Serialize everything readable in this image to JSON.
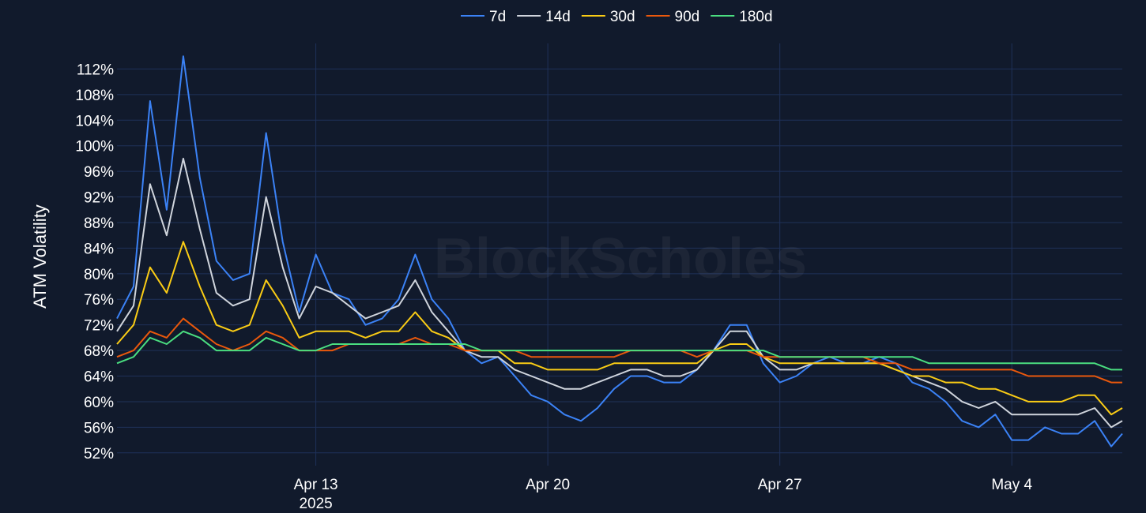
{
  "watermark": "BlockScholes",
  "chart_data": {
    "type": "line",
    "title": "",
    "xlabel": "",
    "ylabel": "ATM Volatility",
    "x_range": [
      "2025-04-07T00:00",
      "2025-05-07T08:00"
    ],
    "ylim": [
      50,
      116
    ],
    "grid": true,
    "legend_position": "top-center",
    "y_ticks": [
      "52%",
      "56%",
      "60%",
      "64%",
      "68%",
      "72%",
      "76%",
      "80%",
      "84%",
      "88%",
      "92%",
      "96%",
      "100%",
      "104%",
      "108%",
      "112%"
    ],
    "y_tick_values": [
      52,
      56,
      60,
      64,
      68,
      72,
      76,
      80,
      84,
      88,
      92,
      96,
      100,
      104,
      108,
      112
    ],
    "x_ticks": [
      {
        "date": "2025-04-13",
        "label": "Apr 13",
        "sublabel": "2025"
      },
      {
        "date": "2025-04-20",
        "label": "Apr 20",
        "sublabel": ""
      },
      {
        "date": "2025-04-27",
        "label": "Apr 27",
        "sublabel": ""
      },
      {
        "date": "2025-05-04",
        "label": "May 4",
        "sublabel": ""
      }
    ],
    "x": [
      "2025-04-07T00:00",
      "2025-04-07T12:00",
      "2025-04-08T00:00",
      "2025-04-08T12:00",
      "2025-04-09T00:00",
      "2025-04-09T12:00",
      "2025-04-10T00:00",
      "2025-04-10T12:00",
      "2025-04-11T00:00",
      "2025-04-11T12:00",
      "2025-04-12T00:00",
      "2025-04-12T12:00",
      "2025-04-13T00:00",
      "2025-04-13T12:00",
      "2025-04-14T00:00",
      "2025-04-14T12:00",
      "2025-04-15T00:00",
      "2025-04-15T12:00",
      "2025-04-16T00:00",
      "2025-04-16T12:00",
      "2025-04-17T00:00",
      "2025-04-17T12:00",
      "2025-04-18T00:00",
      "2025-04-18T12:00",
      "2025-04-19T00:00",
      "2025-04-19T12:00",
      "2025-04-20T00:00",
      "2025-04-20T12:00",
      "2025-04-21T00:00",
      "2025-04-21T12:00",
      "2025-04-22T00:00",
      "2025-04-22T12:00",
      "2025-04-23T00:00",
      "2025-04-23T12:00",
      "2025-04-24T00:00",
      "2025-04-24T12:00",
      "2025-04-25T00:00",
      "2025-04-25T12:00",
      "2025-04-26T00:00",
      "2025-04-26T12:00",
      "2025-04-27T00:00",
      "2025-04-27T12:00",
      "2025-04-28T00:00",
      "2025-04-28T12:00",
      "2025-04-29T00:00",
      "2025-04-29T12:00",
      "2025-04-30T00:00",
      "2025-04-30T12:00",
      "2025-05-01T00:00",
      "2025-05-01T12:00",
      "2025-05-02T00:00",
      "2025-05-02T12:00",
      "2025-05-03T00:00",
      "2025-05-03T12:00",
      "2025-05-04T00:00",
      "2025-05-04T12:00",
      "2025-05-05T00:00",
      "2025-05-05T12:00",
      "2025-05-06T00:00",
      "2025-05-06T12:00",
      "2025-05-07T00:00",
      "2025-05-07T08:00"
    ],
    "series": [
      {
        "name": "7d",
        "color": "#3b82f6",
        "values": [
          73,
          78,
          107,
          90,
          114,
          95,
          82,
          79,
          80,
          102,
          85,
          74,
          83,
          77,
          76,
          72,
          73,
          76,
          83,
          76,
          73,
          68,
          66,
          67,
          64,
          61,
          60,
          58,
          57,
          59,
          62,
          64,
          64,
          63,
          63,
          65,
          68,
          72,
          72,
          66,
          63,
          64,
          66,
          67,
          66,
          66,
          67,
          66,
          63,
          62,
          60,
          57,
          56,
          58,
          54,
          54,
          56,
          55,
          55,
          57,
          53,
          55
        ]
      },
      {
        "name": "14d",
        "color": "#cfd4dc",
        "values": [
          71,
          75,
          94,
          86,
          98,
          87,
          77,
          75,
          76,
          92,
          81,
          73,
          78,
          77,
          75,
          73,
          74,
          75,
          79,
          74,
          71,
          68,
          67,
          67,
          65,
          64,
          63,
          62,
          62,
          63,
          64,
          65,
          65,
          64,
          64,
          65,
          68,
          71,
          71,
          67,
          65,
          65,
          66,
          66,
          66,
          66,
          66,
          65,
          64,
          63,
          62,
          60,
          59,
          60,
          58,
          58,
          58,
          58,
          58,
          59,
          56,
          57
        ]
      },
      {
        "name": "30d",
        "color": "#facc15",
        "values": [
          69,
          72,
          81,
          77,
          85,
          78,
          72,
          71,
          72,
          79,
          75,
          70,
          71,
          71,
          71,
          70,
          71,
          71,
          74,
          71,
          70,
          68,
          68,
          68,
          66,
          66,
          65,
          65,
          65,
          65,
          66,
          66,
          66,
          66,
          66,
          66,
          68,
          69,
          69,
          67,
          66,
          66,
          66,
          66,
          66,
          66,
          66,
          65,
          64,
          64,
          63,
          63,
          62,
          62,
          61,
          60,
          60,
          60,
          61,
          61,
          58,
          59
        ]
      },
      {
        "name": "90d",
        "color": "#ea580c",
        "values": [
          67,
          68,
          71,
          70,
          73,
          71,
          69,
          68,
          69,
          71,
          70,
          68,
          68,
          68,
          69,
          69,
          69,
          69,
          70,
          69,
          69,
          68,
          68,
          68,
          68,
          67,
          67,
          67,
          67,
          67,
          67,
          68,
          68,
          68,
          68,
          67,
          68,
          68,
          68,
          67,
          67,
          67,
          67,
          67,
          67,
          67,
          66,
          66,
          65,
          65,
          65,
          65,
          65,
          65,
          65,
          64,
          64,
          64,
          64,
          64,
          63,
          63
        ]
      },
      {
        "name": "180d",
        "color": "#4ade80",
        "values": [
          66,
          67,
          70,
          69,
          71,
          70,
          68,
          68,
          68,
          70,
          69,
          68,
          68,
          69,
          69,
          69,
          69,
          69,
          69,
          69,
          69,
          69,
          68,
          68,
          68,
          68,
          68,
          68,
          68,
          68,
          68,
          68,
          68,
          68,
          68,
          68,
          68,
          68,
          68,
          68,
          67,
          67,
          67,
          67,
          67,
          67,
          67,
          67,
          67,
          66,
          66,
          66,
          66,
          66,
          66,
          66,
          66,
          66,
          66,
          66,
          65,
          65
        ]
      }
    ]
  }
}
